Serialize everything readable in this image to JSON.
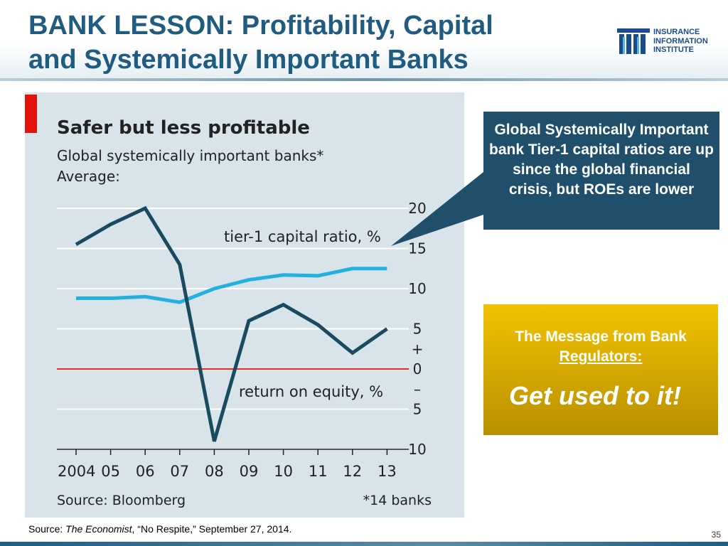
{
  "slide": {
    "title_line1": "BANK LESSON: Profitability, Capital",
    "title_line2": "and Systemically Important Banks",
    "logo_lines": [
      "INSURANCE",
      "INFORMATION",
      "INSTITUTE"
    ],
    "page_number": "35"
  },
  "callout": {
    "text": "Global Systemically Important bank Tier-1 capital ratios are up since the global financial crisis, but ROEs are lower"
  },
  "message_box": {
    "prefix": "The Message from Bank ",
    "underlined": "Regulators:",
    "big_text": "Get used to it!"
  },
  "source_note": {
    "prefix": "Source: ",
    "publication": "The Economist",
    "rest": ", “No Respite,” September 27, 2014."
  },
  "colors": {
    "title": "#1f5c80",
    "panel_bg": "#d8e4ea",
    "callout_bg": "#1f4f6b",
    "roe_line": "#1a4a5e",
    "tier1_line": "#24b0de",
    "zero_line": "#e03020",
    "red_tab": "#e3120b",
    "gold": "#f2c300"
  },
  "chart_data": {
    "type": "line",
    "title": "Safer but less profitable",
    "subtitle": "Global systemically important banks*",
    "subtitle2": "Average:",
    "x": [
      "2004",
      "05",
      "06",
      "07",
      "08",
      "09",
      "10",
      "11",
      "12",
      "13"
    ],
    "series": [
      {
        "name": "tier-1 capital ratio, %",
        "color": "#24b0de",
        "values": [
          8.8,
          8.8,
          9.0,
          8.3,
          10.0,
          11.1,
          11.7,
          11.6,
          12.5,
          12.5
        ]
      },
      {
        "name": "return on equity, %",
        "color": "#1a4a5e",
        "values": [
          15.5,
          18,
          20,
          13,
          -9,
          6,
          8,
          5.5,
          2,
          5
        ]
      }
    ],
    "ylim": [
      -10,
      20
    ],
    "ytick_labels": [
      "20",
      "15",
      "10",
      "5",
      "+",
      "0",
      "–",
      "5",
      "10"
    ],
    "grid": true,
    "source": "Source: Bloomberg",
    "footnote": "*14 banks"
  }
}
